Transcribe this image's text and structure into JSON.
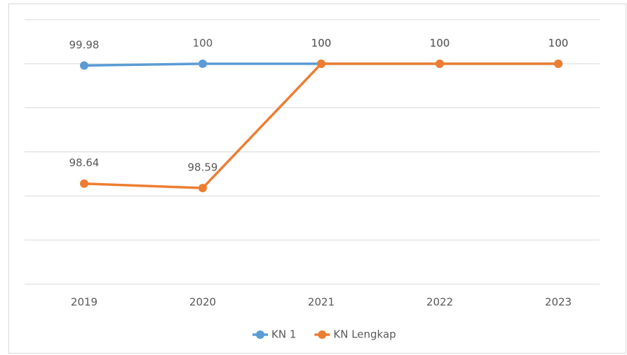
{
  "chart_data": {
    "type": "line",
    "categories": [
      "2019",
      "2020",
      "2021",
      "2022",
      "2023"
    ],
    "series": [
      {
        "name": "KN 1",
        "color": "#5b9bd5",
        "values": [
          99.98,
          100,
          100,
          100,
          100
        ]
      },
      {
        "name": "KN Lengkap",
        "color": "#ed7d31",
        "values": [
          98.64,
          98.59,
          100,
          100,
          100
        ]
      }
    ],
    "ylim": [
      97.5,
      100.5
    ],
    "yticks": [
      97.5,
      98,
      98.5,
      99,
      99.5,
      100,
      100.5
    ],
    "grid": true,
    "legend": "bottom"
  }
}
